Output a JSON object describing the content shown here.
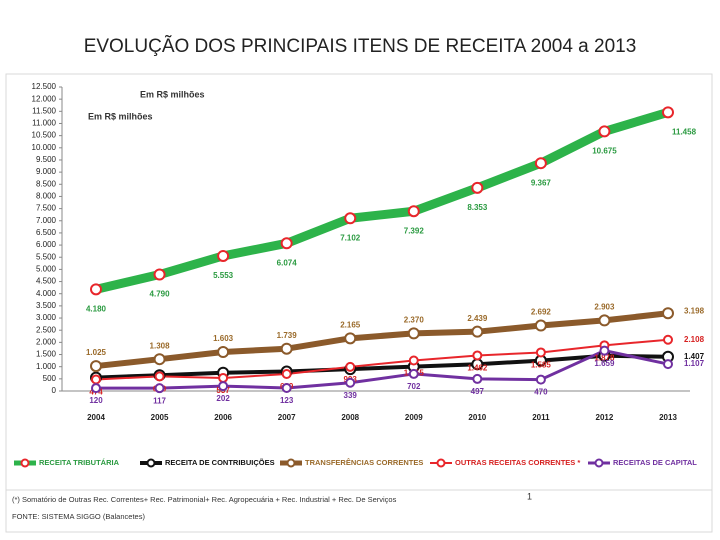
{
  "chart_data": {
    "type": "line",
    "title": "EVOLUÇÃO DOS PRINCIPAIS ITENS DE RECEITA 2004 a 2013",
    "unit_labels": [
      "Em R$ milhões",
      "Em R$ milhões"
    ],
    "categories": [
      "2004",
      "2005",
      "2006",
      "2007",
      "2008",
      "2009",
      "2010",
      "2011",
      "2012",
      "2013"
    ],
    "series": [
      {
        "name": "RECEITA TRIBUTÁRIA",
        "color": "#2db34a",
        "label_color": "#2a9a40",
        "values": [
          4180,
          4790,
          5553,
          6074,
          7102,
          7392,
          8353,
          9367,
          10675,
          11458
        ],
        "value_labels": [
          "4.180",
          "4.790",
          "5.553",
          "6.074",
          "7.102",
          "7.392",
          "8.353",
          "9.367",
          "10.675",
          "11.458"
        ]
      },
      {
        "name": "RECEITA DE CONTRIBUIÇÕES",
        "color": "#111111",
        "label_color": "#111111",
        "values": [
          550,
          650,
          750,
          800,
          900,
          1000,
          1100,
          1250,
          1450,
          1407
        ],
        "value_labels": [
          null,
          null,
          null,
          null,
          null,
          null,
          null,
          null,
          null,
          "1.407"
        ]
      },
      {
        "name": "TRANSFERÊNCIAS CORRENTES",
        "color": "#8b5a2b",
        "label_color": "#9a6a2a",
        "values": [
          1025,
          1308,
          1603,
          1739,
          2165,
          2370,
          2439,
          2692,
          2903,
          3198
        ],
        "value_labels": [
          "1.025",
          "1.308",
          "1.603",
          "1.739",
          "2.165",
          "2.370",
          "2.439",
          "2.692",
          "2.903",
          "3.198"
        ]
      },
      {
        "name": "OUTRAS RECEITAS CORRENTES *",
        "color": "#e8262b",
        "label_color": "#d62020",
        "values": [
          474,
          600,
          537,
          699,
          993,
          1255,
          1462,
          1585,
          1878,
          2108
        ],
        "value_labels": [
          "474",
          "600",
          "537",
          "699",
          "993",
          "1.255",
          "1.462",
          "1.585",
          "1.878",
          "2.108"
        ]
      },
      {
        "name": "RECEITAS DE CAPITAL",
        "color": "#7030a0",
        "label_color": "#7030a0",
        "values": [
          120,
          117,
          202,
          123,
          339,
          702,
          497,
          470,
          1659,
          1107
        ],
        "value_labels": [
          "120",
          "117",
          "202",
          "123",
          "339",
          "702",
          "497",
          "470",
          "1.659",
          "1.107"
        ]
      }
    ],
    "ylim": [
      0,
      12500
    ],
    "yticks": [
      0,
      500,
      {
        "value": 1000,
        "label": "1.000"
      },
      {
        "value": 1500,
        "label": "1.500"
      },
      {
        "value": 2000,
        "label": "2.000"
      },
      {
        "value": 2500,
        "label": "2.500"
      },
      {
        "value": 3000,
        "label": "3.000"
      },
      {
        "value": 3500,
        "label": "3.500"
      },
      {
        "value": 4000,
        "label": "4.000"
      },
      {
        "value": 4500,
        "label": "4.500"
      },
      {
        "value": 5000,
        "label": "5.000"
      },
      {
        "value": 5500,
        "label": "5.500"
      },
      {
        "value": 6000,
        "label": "6.000"
      },
      {
        "value": 6500,
        "label": "6.500"
      },
      {
        "value": 7000,
        "label": "7.000"
      },
      {
        "value": 7500,
        "label": "7.500"
      },
      {
        "value": 8000,
        "label": "8.000"
      },
      {
        "value": 8500,
        "label": "8.500"
      },
      {
        "value": 9000,
        "label": "9.000"
      },
      {
        "value": 9500,
        "label": "9.500"
      },
      {
        "value": 10000,
        "label": "10.000"
      },
      {
        "value": 10500,
        "label": "10.500"
      },
      {
        "value": 11000,
        "label": "11.000"
      },
      {
        "value": 11500,
        "label": "11.500"
      },
      {
        "value": 12000,
        "label": "12.000"
      },
      {
        "value": 12500,
        "label": "12.500"
      }
    ],
    "grid": false,
    "legend": "bottom",
    "footnote": "(*) Somatório de Outras Rec. Correntes+ Rec. Patrimonial+ Rec. Agropecuária + Rec. Industrial + Rec. De Serviços",
    "source": "FONTE: SISTEMA SIGGO (Balancetes)",
    "page_number": "1"
  }
}
